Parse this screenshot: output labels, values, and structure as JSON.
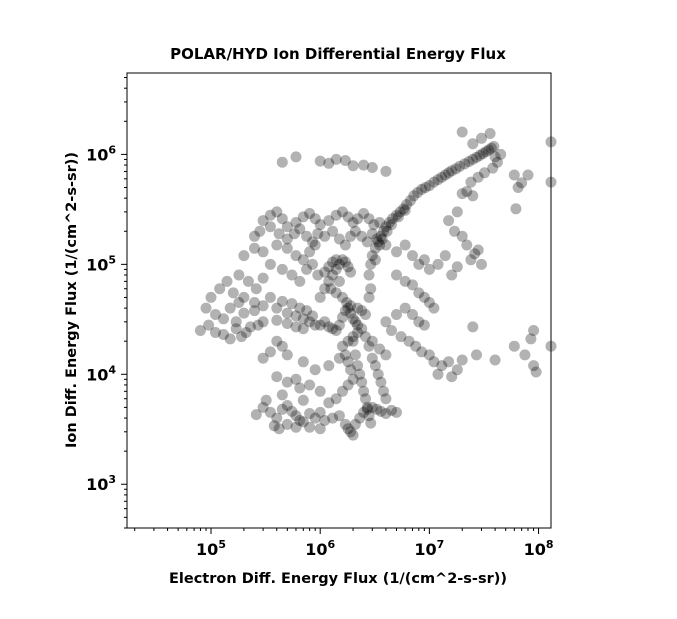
{
  "chart_data": {
    "type": "scatter",
    "title": "POLAR/HYD  Ion Differential Energy Flux",
    "xlabel": "Electron Diff. Energy Flux (1/(cm^2-s-sr))",
    "ylabel": "Ion Diff. Energy Flux (1/(cm^2-s-sr))",
    "x_scale": "log",
    "y_scale": "log",
    "xlim": [
      17000,
      130000000
    ],
    "ylim": [
      400,
      5500000
    ],
    "x_ticks": [
      {
        "value": 100000,
        "base": "10",
        "exp": "5"
      },
      {
        "value": 1000000,
        "base": "10",
        "exp": "6"
      },
      {
        "value": 10000000,
        "base": "10",
        "exp": "7"
      },
      {
        "value": 100000000,
        "base": "10",
        "exp": "8"
      }
    ],
    "y_ticks": [
      {
        "value": 1000,
        "base": "10",
        "exp": "3"
      },
      {
        "value": 10000,
        "base": "10",
        "exp": "4"
      },
      {
        "value": 100000,
        "base": "10",
        "exp": "5"
      },
      {
        "value": 1000000,
        "base": "10",
        "exp": "6"
      }
    ],
    "marker_color": "#000000",
    "marker_opacity": 0.3,
    "grid": false,
    "points": [
      [
        80000,
        25000
      ],
      [
        95000,
        28000
      ],
      [
        110000,
        24000
      ],
      [
        130000,
        32000
      ],
      [
        150000,
        40000
      ],
      [
        170000,
        30000
      ],
      [
        200000,
        36000
      ],
      [
        250000,
        38000
      ],
      [
        300000,
        42000
      ],
      [
        400000,
        40000
      ],
      [
        500000,
        36000
      ],
      [
        600000,
        34000
      ],
      [
        700000,
        32000
      ],
      [
        800000,
        30000
      ],
      [
        900000,
        28000
      ],
      [
        1000000,
        28000
      ],
      [
        1100000,
        30000
      ],
      [
        1200000,
        27000
      ],
      [
        1300000,
        26000
      ],
      [
        1400000,
        25000
      ],
      [
        1500000,
        28000
      ],
      [
        1600000,
        33000
      ],
      [
        1700000,
        38000
      ],
      [
        1800000,
        40000
      ],
      [
        1900000,
        36000
      ],
      [
        2000000,
        32000
      ],
      [
        2100000,
        30000
      ],
      [
        2200000,
        28000
      ],
      [
        250000,
        45000
      ],
      [
        350000,
        50000
      ],
      [
        450000,
        46000
      ],
      [
        550000,
        44000
      ],
      [
        650000,
        40000
      ],
      [
        750000,
        38000
      ],
      [
        850000,
        34000
      ],
      [
        300000,
        30000
      ],
      [
        400000,
        31000
      ],
      [
        500000,
        29000
      ],
      [
        600000,
        27000
      ],
      [
        700000,
        26000
      ],
      [
        1000000,
        50000
      ],
      [
        1100000,
        60000
      ],
      [
        1200000,
        70000
      ],
      [
        1300000,
        80000
      ],
      [
        1400000,
        90000
      ],
      [
        1500000,
        100000
      ],
      [
        1600000,
        110000
      ],
      [
        1700000,
        105000
      ],
      [
        1800000,
        95000
      ],
      [
        1900000,
        85000
      ],
      [
        1200000,
        95000
      ],
      [
        1300000,
        105000
      ],
      [
        1400000,
        110000
      ],
      [
        1100000,
        85000
      ],
      [
        1250000,
        60000
      ],
      [
        1400000,
        55000
      ],
      [
        1600000,
        50000
      ],
      [
        1750000,
        45000
      ],
      [
        1900000,
        42000
      ],
      [
        1500000,
        70000
      ],
      [
        2200000,
        40000
      ],
      [
        2400000,
        38000
      ],
      [
        2600000,
        35000
      ],
      [
        2800000,
        50000
      ],
      [
        2900000,
        60000
      ],
      [
        2800000,
        80000
      ],
      [
        2900000,
        100000
      ],
      [
        3000000,
        120000
      ],
      [
        3200000,
        140000
      ],
      [
        3400000,
        160000
      ],
      [
        3600000,
        180000
      ],
      [
        3800000,
        200000
      ],
      [
        4000000,
        220000
      ],
      [
        4300000,
        240000
      ],
      [
        4600000,
        260000
      ],
      [
        5000000,
        280000
      ],
      [
        5400000,
        300000
      ],
      [
        5800000,
        320000
      ],
      [
        6200000,
        350000
      ],
      [
        6700000,
        380000
      ],
      [
        7200000,
        420000
      ],
      [
        7800000,
        450000
      ],
      [
        8500000,
        480000
      ],
      [
        9200000,
        500000
      ],
      [
        10000000,
        520000
      ],
      [
        11000000,
        560000
      ],
      [
        12000000,
        590000
      ],
      [
        13000000,
        620000
      ],
      [
        14000000,
        650000
      ],
      [
        15000000,
        680000
      ],
      [
        16000000,
        710000
      ],
      [
        17500000,
        740000
      ],
      [
        19000000,
        780000
      ],
      [
        21000000,
        820000
      ],
      [
        23000000,
        860000
      ],
      [
        25000000,
        900000
      ],
      [
        27000000,
        940000
      ],
      [
        29000000,
        980000
      ],
      [
        31000000,
        1020000
      ],
      [
        33000000,
        1060000
      ],
      [
        35000000,
        1100000
      ],
      [
        37000000,
        1140000
      ],
      [
        39000000,
        1180000
      ],
      [
        3200000,
        110000
      ],
      [
        3500000,
        150000
      ],
      [
        3700000,
        170000
      ],
      [
        4100000,
        200000
      ],
      [
        4500000,
        230000
      ],
      [
        5200000,
        270000
      ],
      [
        6000000,
        310000
      ],
      [
        2000000,
        20000
      ],
      [
        2100000,
        15000
      ],
      [
        2200000,
        12000
      ],
      [
        2300000,
        10000
      ],
      [
        2400000,
        8500
      ],
      [
        2500000,
        7000
      ],
      [
        2600000,
        6000
      ],
      [
        2700000,
        5000
      ],
      [
        2800000,
        4200
      ],
      [
        2900000,
        3600
      ],
      [
        1700000,
        3500
      ],
      [
        1800000,
        3200
      ],
      [
        1900000,
        3000
      ],
      [
        2000000,
        2800
      ],
      [
        2100000,
        3500
      ],
      [
        2300000,
        4000
      ],
      [
        2500000,
        4500
      ],
      [
        2700000,
        4800
      ],
      [
        3000000,
        5000
      ],
      [
        3300000,
        4800
      ],
      [
        3600000,
        4600
      ],
      [
        4000000,
        4400
      ],
      [
        4500000,
        4700
      ],
      [
        5000000,
        4500
      ],
      [
        1500000,
        4200
      ],
      [
        1300000,
        4000
      ],
      [
        1100000,
        3800
      ],
      [
        1000000,
        4500
      ],
      [
        900000,
        4000
      ],
      [
        1200000,
        5500
      ],
      [
        1400000,
        6000
      ],
      [
        1600000,
        7000
      ],
      [
        1800000,
        8000
      ],
      [
        2000000,
        9000
      ],
      [
        1900000,
        11000
      ],
      [
        1800000,
        13000
      ],
      [
        1700000,
        15000
      ],
      [
        1600000,
        18000
      ],
      [
        1800000,
        20000
      ],
      [
        2000000,
        22000
      ],
      [
        2200000,
        24000
      ],
      [
        2400000,
        26000
      ],
      [
        2600000,
        22000
      ],
      [
        2800000,
        18000
      ],
      [
        3000000,
        14000
      ],
      [
        3200000,
        12000
      ],
      [
        3400000,
        10000
      ],
      [
        3600000,
        8500
      ],
      [
        3800000,
        7000
      ],
      [
        4000000,
        6000
      ],
      [
        300000,
        5000
      ],
      [
        350000,
        4500
      ],
      [
        400000,
        4000
      ],
      [
        450000,
        4800
      ],
      [
        500000,
        5200
      ],
      [
        550000,
        4600
      ],
      [
        600000,
        4200
      ],
      [
        650000,
        3800
      ],
      [
        380000,
        3400
      ],
      [
        420000,
        3200
      ],
      [
        500000,
        3500
      ],
      [
        700000,
        3700
      ],
      [
        800000,
        3300
      ],
      [
        260000,
        4300
      ],
      [
        320000,
        5800
      ],
      [
        450000,
        6500
      ],
      [
        700000,
        5800
      ],
      [
        800000,
        4400
      ],
      [
        600000,
        3300
      ],
      [
        1000000,
        3200
      ],
      [
        300000,
        250000
      ],
      [
        350000,
        280000
      ],
      [
        400000,
        300000
      ],
      [
        450000,
        260000
      ],
      [
        500000,
        220000
      ],
      [
        600000,
        240000
      ],
      [
        700000,
        270000
      ],
      [
        800000,
        290000
      ],
      [
        900000,
        260000
      ],
      [
        1000000,
        230000
      ],
      [
        1200000,
        250000
      ],
      [
        1400000,
        280000
      ],
      [
        1600000,
        300000
      ],
      [
        1800000,
        270000
      ],
      [
        2000000,
        240000
      ],
      [
        2200000,
        260000
      ],
      [
        2500000,
        290000
      ],
      [
        2800000,
        260000
      ],
      [
        3100000,
        230000
      ],
      [
        3500000,
        240000
      ],
      [
        250000,
        180000
      ],
      [
        280000,
        200000
      ],
      [
        350000,
        220000
      ],
      [
        420000,
        190000
      ],
      [
        500000,
        170000
      ],
      [
        580000,
        190000
      ],
      [
        650000,
        210000
      ],
      [
        750000,
        180000
      ],
      [
        850000,
        160000
      ],
      [
        950000,
        190000
      ],
      [
        1100000,
        180000
      ],
      [
        1300000,
        200000
      ],
      [
        1500000,
        170000
      ],
      [
        1700000,
        150000
      ],
      [
        1900000,
        180000
      ],
      [
        2100000,
        200000
      ],
      [
        2400000,
        180000
      ],
      [
        2700000,
        160000
      ],
      [
        3000000,
        190000
      ],
      [
        3300000,
        170000
      ],
      [
        200000,
        120000
      ],
      [
        250000,
        140000
      ],
      [
        300000,
        130000
      ],
      [
        400000,
        150000
      ],
      [
        500000,
        140000
      ],
      [
        600000,
        120000
      ],
      [
        700000,
        110000
      ],
      [
        800000,
        130000
      ],
      [
        900000,
        150000
      ],
      [
        350000,
        100000
      ],
      [
        450000,
        90000
      ],
      [
        550000,
        80000
      ],
      [
        650000,
        70000
      ],
      [
        750000,
        90000
      ],
      [
        850000,
        100000
      ],
      [
        950000,
        80000
      ],
      [
        180000,
        80000
      ],
      [
        220000,
        70000
      ],
      [
        260000,
        60000
      ],
      [
        300000,
        75000
      ],
      [
        4000000,
        150000
      ],
      [
        5000000,
        130000
      ],
      [
        6000000,
        150000
      ],
      [
        7000000,
        120000
      ],
      [
        8000000,
        100000
      ],
      [
        9000000,
        110000
      ],
      [
        10000000,
        90000
      ],
      [
        12000000,
        100000
      ],
      [
        14000000,
        120000
      ],
      [
        16000000,
        80000
      ],
      [
        18000000,
        95000
      ],
      [
        5000000,
        80000
      ],
      [
        6000000,
        70000
      ],
      [
        7000000,
        65000
      ],
      [
        8000000,
        55000
      ],
      [
        9000000,
        50000
      ],
      [
        10000000,
        45000
      ],
      [
        11000000,
        40000
      ],
      [
        6000000,
        40000
      ],
      [
        7000000,
        35000
      ],
      [
        8000000,
        30000
      ],
      [
        9000000,
        28000
      ],
      [
        5000000,
        35000
      ],
      [
        4000000,
        30000
      ],
      [
        4500000,
        25000
      ],
      [
        5500000,
        22000
      ],
      [
        6500000,
        20000
      ],
      [
        7500000,
        18000
      ],
      [
        8500000,
        16000
      ],
      [
        10000000,
        15000
      ],
      [
        11000000,
        13000
      ],
      [
        13000000,
        12000
      ],
      [
        15000000,
        13000
      ],
      [
        12000000,
        10000
      ],
      [
        3000000,
        20000
      ],
      [
        3500000,
        17000
      ],
      [
        4000000,
        15000
      ],
      [
        1500000,
        14000
      ],
      [
        1200000,
        12000
      ],
      [
        900000,
        11000
      ],
      [
        700000,
        13000
      ],
      [
        500000,
        15000
      ],
      [
        450000,
        18000
      ],
      [
        400000,
        20000
      ],
      [
        350000,
        16000
      ],
      [
        300000,
        14000
      ],
      [
        600000,
        9000
      ],
      [
        800000,
        8000
      ],
      [
        1000000,
        7000
      ],
      [
        650000,
        7500
      ],
      [
        500000,
        8500
      ],
      [
        400000,
        9500
      ],
      [
        100000,
        50000
      ],
      [
        120000,
        60000
      ],
      [
        140000,
        70000
      ],
      [
        160000,
        55000
      ],
      [
        180000,
        45000
      ],
      [
        200000,
        50000
      ],
      [
        90000,
        40000
      ],
      [
        110000,
        35000
      ],
      [
        600000,
        950000
      ],
      [
        450000,
        850000
      ],
      [
        1000000,
        870000
      ],
      [
        1200000,
        830000
      ],
      [
        1400000,
        900000
      ],
      [
        1700000,
        880000
      ],
      [
        2000000,
        790000
      ],
      [
        2500000,
        800000
      ],
      [
        3000000,
        760000
      ],
      [
        4000000,
        700000
      ],
      [
        20000000,
        1600000
      ],
      [
        36000000,
        1550000
      ],
      [
        30000000,
        1400000
      ],
      [
        25000000,
        1250000
      ],
      [
        60000000,
        650000
      ],
      [
        70000000,
        550000
      ],
      [
        80000000,
        650000
      ],
      [
        65000000,
        500000
      ],
      [
        62000000,
        320000
      ],
      [
        130000000,
        1300000
      ],
      [
        130000000,
        560000
      ],
      [
        20000000,
        440000
      ],
      [
        22000000,
        460000
      ],
      [
        25000000,
        420000
      ],
      [
        18000000,
        300000
      ],
      [
        15000000,
        250000
      ],
      [
        17000000,
        200000
      ],
      [
        20000000,
        180000
      ],
      [
        22000000,
        150000
      ],
      [
        24000000,
        110000
      ],
      [
        26000000,
        125000
      ],
      [
        28000000,
        135000
      ],
      [
        30000000,
        100000
      ],
      [
        90000000,
        25000
      ],
      [
        85000000,
        21000
      ],
      [
        60000000,
        18000
      ],
      [
        75000000,
        15000
      ],
      [
        90000000,
        12000
      ],
      [
        95000000,
        10500
      ],
      [
        130000000,
        18000
      ],
      [
        40000000,
        13500
      ],
      [
        25000000,
        27000
      ],
      [
        20000000,
        13500
      ],
      [
        18000000,
        11000
      ],
      [
        16000000,
        9500
      ],
      [
        27000000,
        15000
      ],
      [
        40000000,
        950000
      ],
      [
        45000000,
        1000000
      ],
      [
        42000000,
        850000
      ],
      [
        38000000,
        750000
      ],
      [
        32000000,
        680000
      ],
      [
        28000000,
        620000
      ],
      [
        24000000,
        560000
      ],
      [
        130000,
        23000
      ],
      [
        150000,
        21000
      ],
      [
        170000,
        26000
      ],
      [
        190000,
        22000
      ],
      [
        210000,
        24000
      ],
      [
        230000,
        27000
      ],
      [
        270000,
        28000
      ]
    ]
  }
}
